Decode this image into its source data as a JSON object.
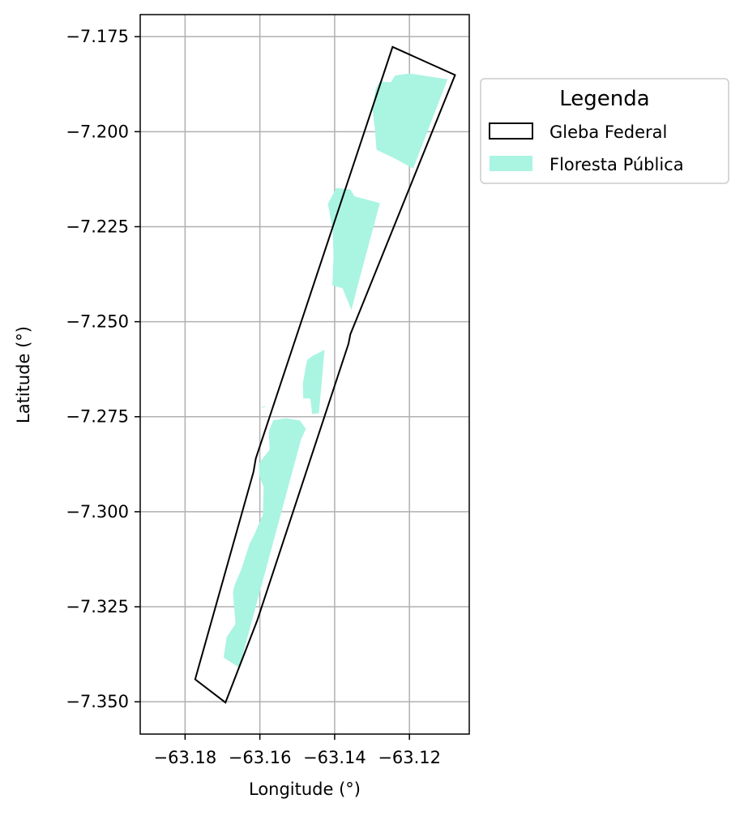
{
  "chart_data": {
    "type": "map",
    "xlabel": "Longitude (°)",
    "ylabel": "Latitude (°)",
    "xlim": [
      -63.192,
      -63.104
    ],
    "ylim": [
      -7.3585,
      -7.1692
    ],
    "xticks": [
      -63.18,
      -63.16,
      -63.14,
      -63.12
    ],
    "xtick_labels": [
      "−63.18",
      "−63.16",
      "−63.14",
      "−63.12"
    ],
    "yticks": [
      -7.175,
      -7.2,
      -7.225,
      -7.25,
      -7.275,
      -7.3,
      -7.325,
      -7.35
    ],
    "ytick_labels": [
      "−7.175",
      "−7.200",
      "−7.225",
      "−7.250",
      "−7.275",
      "−7.300",
      "−7.325",
      "−7.350"
    ],
    "grid": true,
    "legend": {
      "title": "Legenda",
      "placement": "outside-right-top",
      "entries": [
        {
          "label": "Gleba Federal",
          "kind": "outline",
          "edge_color": "#000000",
          "fill": "none"
        },
        {
          "label": "Floresta Pública",
          "kind": "patch",
          "fill": "#aaf4e2"
        }
      ]
    },
    "layers": [
      {
        "name": "Gleba Federal",
        "edge_color": "#000000",
        "fill": "none",
        "polygons": [
          [
            [
              -63.1245,
              -7.1777
            ],
            [
              -63.1078,
              -7.1851
            ],
            [
              -63.1334,
              -7.2475
            ],
            [
              -63.1358,
              -7.2533
            ],
            [
              -63.1363,
              -7.2558
            ],
            [
              -63.1607,
              -7.3286
            ],
            [
              -63.1692,
              -7.3502
            ],
            [
              -63.1773,
              -7.3441
            ],
            [
              -63.1617,
              -7.2895
            ],
            [
              -63.1611,
              -7.286
            ]
          ]
        ]
      },
      {
        "name": "Floresta Pública",
        "fill": "#aaf4e2",
        "polygons": [
          [
            [
              -63.1238,
              -7.1852
            ],
            [
              -63.12,
              -7.1847
            ],
            [
              -63.1098,
              -7.1862
            ],
            [
              -63.119,
              -7.2097
            ],
            [
              -63.124,
              -7.207
            ],
            [
              -63.1288,
              -7.2048
            ],
            [
              -63.1293,
              -7.1987
            ],
            [
              -63.1299,
              -7.1939
            ],
            [
              -63.129,
              -7.1887
            ],
            [
              -63.1279,
              -7.1868
            ],
            [
              -63.125,
              -7.187
            ]
          ],
          [
            [
              -63.1396,
              -7.2148
            ],
            [
              -63.1358,
              -7.2152
            ],
            [
              -63.1347,
              -7.217
            ],
            [
              -63.1279,
              -7.2188
            ],
            [
              -63.1338,
              -7.2404
            ],
            [
              -63.1355,
              -7.2469
            ],
            [
              -63.1379,
              -7.2412
            ],
            [
              -63.1406,
              -7.2404
            ],
            [
              -63.1403,
              -7.2331
            ],
            [
              -63.1405,
              -7.2261
            ],
            [
              -63.1418,
              -7.219
            ]
          ],
          [
            [
              -63.1427,
              -7.2574
            ],
            [
              -63.1457,
              -7.2589
            ],
            [
              -63.1473,
              -7.26
            ],
            [
              -63.1478,
              -7.2622
            ],
            [
              -63.1485,
              -7.2663
            ],
            [
              -63.1484,
              -7.2702
            ],
            [
              -63.1465,
              -7.2702
            ],
            [
              -63.146,
              -7.2743
            ],
            [
              -63.1442,
              -7.2741
            ]
          ],
          [
            [
              -63.1596,
              -7.2727
            ],
            [
              -63.158,
              -7.2723
            ],
            [
              -63.1594,
              -7.2724
            ]
          ],
          [
            [
              -63.1493,
              -7.276
            ],
            [
              -63.153,
              -7.2754
            ],
            [
              -63.1564,
              -7.2759
            ],
            [
              -63.1576,
              -7.279
            ],
            [
              -63.1574,
              -7.2837
            ],
            [
              -63.1595,
              -7.2863
            ],
            [
              -63.1603,
              -7.2875
            ],
            [
              -63.1601,
              -7.2908
            ],
            [
              -63.159,
              -7.2935
            ],
            [
              -63.1592,
              -7.3008
            ],
            [
              -63.1614,
              -7.3058
            ],
            [
              -63.1627,
              -7.3083
            ],
            [
              -63.1637,
              -7.3113
            ],
            [
              -63.1649,
              -7.315
            ],
            [
              -63.1667,
              -7.3192
            ],
            [
              -63.1672,
              -7.3212
            ],
            [
              -63.1665,
              -7.3295
            ],
            [
              -63.1689,
              -7.333
            ],
            [
              -63.1697,
              -7.3384
            ],
            [
              -63.1655,
              -7.341
            ],
            [
              -63.149,
              -7.281
            ],
            [
              -63.1477,
              -7.2782
            ]
          ]
        ]
      }
    ]
  }
}
